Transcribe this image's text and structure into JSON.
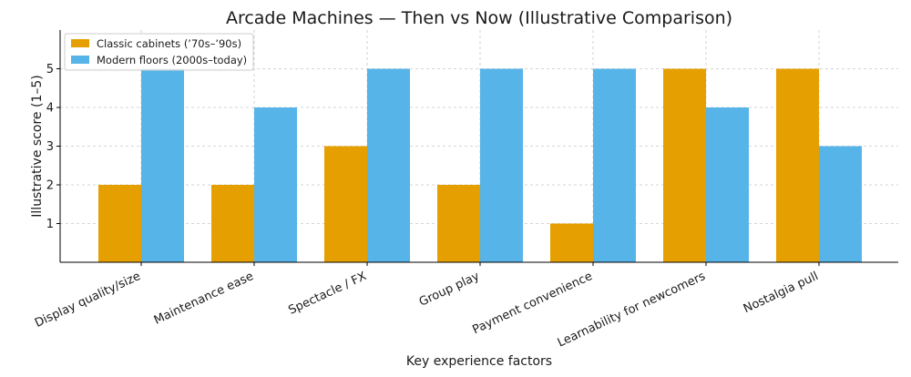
{
  "chart_data": {
    "type": "bar",
    "title": "Arcade Machines — Then vs Now (Illustrative Comparison)",
    "xlabel": "Key experience factors",
    "ylabel": "Illustrative score (1–5)",
    "ylim": [
      0,
      6
    ],
    "yticks": [
      1,
      2,
      3,
      4,
      5
    ],
    "grid": true,
    "legend_position": "top-left",
    "categories": [
      "Display quality/size",
      "Maintenance ease",
      "Spectacle / FX",
      "Group play",
      "Payment convenience",
      "Learnability for newcomers",
      "Nostalgia pull"
    ],
    "series": [
      {
        "name": "Classic cabinets (’70s–’90s)",
        "color": "#E69F00",
        "values": [
          2,
          2,
          3,
          2,
          1,
          5,
          5
        ]
      },
      {
        "name": "Modern floors (2000s–today)",
        "color": "#56B4E9",
        "values": [
          5,
          4,
          5,
          5,
          5,
          4,
          3
        ]
      }
    ]
  }
}
